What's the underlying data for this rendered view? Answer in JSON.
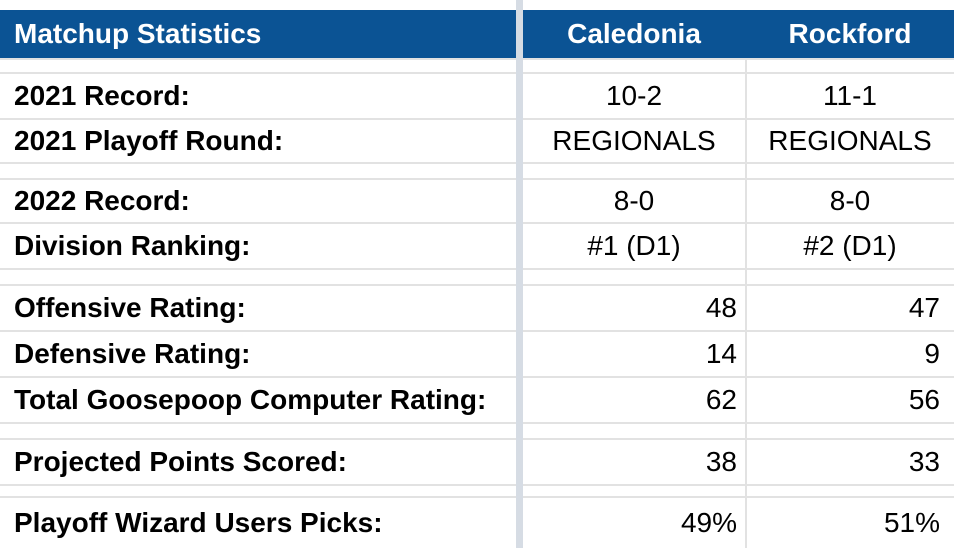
{
  "header": {
    "title": "Matchup Statistics",
    "team1": "Caledonia",
    "team2": "Rockford"
  },
  "rows": [
    {
      "label": "2021 Record:",
      "team1": "10-2",
      "team2": "11-1"
    },
    {
      "label": "2021 Playoff Round:",
      "team1": "REGIONALS",
      "team2": "REGIONALS"
    },
    {
      "label": "2022 Record:",
      "team1": "8-0",
      "team2": "8-0"
    },
    {
      "label": "Division Ranking:",
      "team1": "#1 (D1)",
      "team2": "#2 (D1)"
    },
    {
      "label": "Offensive Rating:",
      "team1": "48",
      "team2": "47"
    },
    {
      "label": "Defensive Rating:",
      "team1": "14",
      "team2": "9"
    },
    {
      "label": "Total Goosepoop Computer Rating:",
      "team1": "62",
      "team2": "56"
    },
    {
      "label": "Projected Points Scored:",
      "team1": "38",
      "team2": "33"
    },
    {
      "label": "Playoff Wizard Users Picks:",
      "team1": "49%",
      "team2": "51%"
    }
  ],
  "colors": {
    "header_background": "#0b5394",
    "header_text": "#ffffff",
    "gridline": "#e2e2e2",
    "freeze_bar": "#d6dce4"
  }
}
